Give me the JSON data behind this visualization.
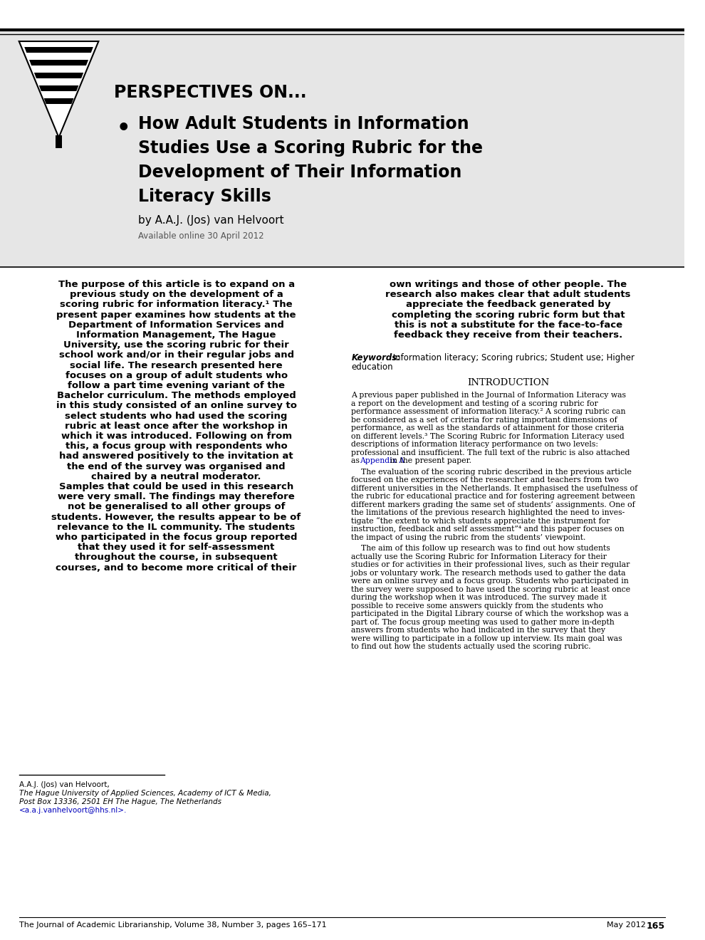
{
  "page_background": "#ffffff",
  "header_bg": "#e6e6e6",
  "perspectives_label": "PERSPECTIVES ON...",
  "bullet_title_lines": [
    "How Adult Students in Information",
    "Studies Use a Scoring Rubric for the",
    "Development of Their Information",
    "Literacy Skills"
  ],
  "author": "by A.A.J. (Jos) van Helvoort",
  "available_online": "Available online 30 April 2012",
  "left_abstract_lines": [
    "The purpose of this article is to expand on a",
    "previous study on the development of a",
    "scoring rubric for information literacy.¹ The",
    "present paper examines how students at the",
    "Department of Information Services and",
    "Information Management, The Hague",
    "University, use the scoring rubric for their",
    "school work and/or in their regular jobs and",
    "social life. The research presented here",
    "focuses on a group of adult students who",
    "follow a part time evening variant of the",
    "Bachelor curriculum. The methods employed",
    "in this study consisted of an online survey to",
    "select students who had used the scoring",
    "rubric at least once after the workshop in",
    "which it was introduced. Following on from",
    "this, a focus group with respondents who",
    "had answered positively to the invitation at",
    "the end of the survey was organised and",
    "chaired by a neutral moderator.",
    "Samples that could be used in this research",
    "were very small. The findings may therefore",
    "not be generalised to all other groups of",
    "students. However, the results appear to be of",
    "relevance to the IL community. The students",
    "who participated in the focus group reported",
    "that they used it for self-assessment",
    "throughout the course, in subsequent",
    "courses, and to become more critical of their"
  ],
  "right_abstract_lines": [
    "own writings and those of other people. The",
    "research also makes clear that adult students",
    "appreciate the feedback generated by",
    "completing the scoring rubric form but that",
    "this is not a substitute for the face-to-face",
    "feedback they receive from their teachers."
  ],
  "keywords_label": "Keywords:",
  "keywords_text": " Information literacy; Scoring rubrics; Student use; Higher",
  "keywords_text2": "education",
  "intro_heading": "INTRODUCTION",
  "intro_para1_lines": [
    "A previous paper published in the Journal of Information Literacy was",
    "a report on the development and testing of a scoring rubric for",
    "performance assessment of information literacy.² A scoring rubric can",
    "be considered as a set of criteria for rating important dimensions of",
    "performance, as well as the standards of attainment for those criteria",
    "on different levels.³ The Scoring Rubric for Information Literacy used",
    "descriptions of information literacy performance on two levels:",
    "professional and insufficient. The full text of the rubric is also attached",
    "as [APPENDIX_A] in the present paper."
  ],
  "intro_para2_lines": [
    "    The evaluation of the scoring rubric described in the previous article",
    "focused on the experiences of the researcher and teachers from two",
    "different universities in the Netherlands. It emphasised the usefulness of",
    "the rubric for educational practice and for fostering agreement between",
    "different markers grading the same set of students’ assignments. One of",
    "the limitations of the previous research highlighted the need to inves-",
    "tigate “the extent to which students appreciate the instrument for",
    "instruction, feedback and self assessment”⁴ and this paper focuses on",
    "the impact of using the rubric from the students’ viewpoint."
  ],
  "intro_para3_lines": [
    "    The aim of this follow up research was to find out how students",
    "actually use the Scoring Rubric for Information Literacy for their",
    "studies or for activities in their professional lives, such as their regular",
    "jobs or voluntary work. The research methods used to gather the data",
    "were an online survey and a focus group. Students who participated in",
    "the survey were supposed to have used the scoring rubric at least once",
    "during the workshop when it was introduced. The survey made it",
    "possible to receive some answers quickly from the students who",
    "participated in the Digital Library course of which the workshop was a",
    "part of. The focus group meeting was used to gather more in-depth",
    "answers from students who had indicated in the survey that they",
    "were willing to participate in a follow up interview. Its main goal was",
    "to find out how the students actually used the scoring rubric."
  ],
  "footnote_name": "A.A.J. (Jos) van Helvoort,",
  "footnote_inst": "The Hague University of Applied Sciences, Academy of ICT & Media,",
  "footnote_addr": "Post Box 13336, 2501 EH The Hague, The Netherlands",
  "footnote_email": "<a.a.j.vanhelvoort@hhs.nl>.",
  "footer_left": "The Journal of Academic Librarianship, Volume 38, Number 3, pages 165–171",
  "footer_right": "May 2012",
  "footer_page": "165",
  "link_color": "#0000bb",
  "appendix_text": "Appendix A"
}
